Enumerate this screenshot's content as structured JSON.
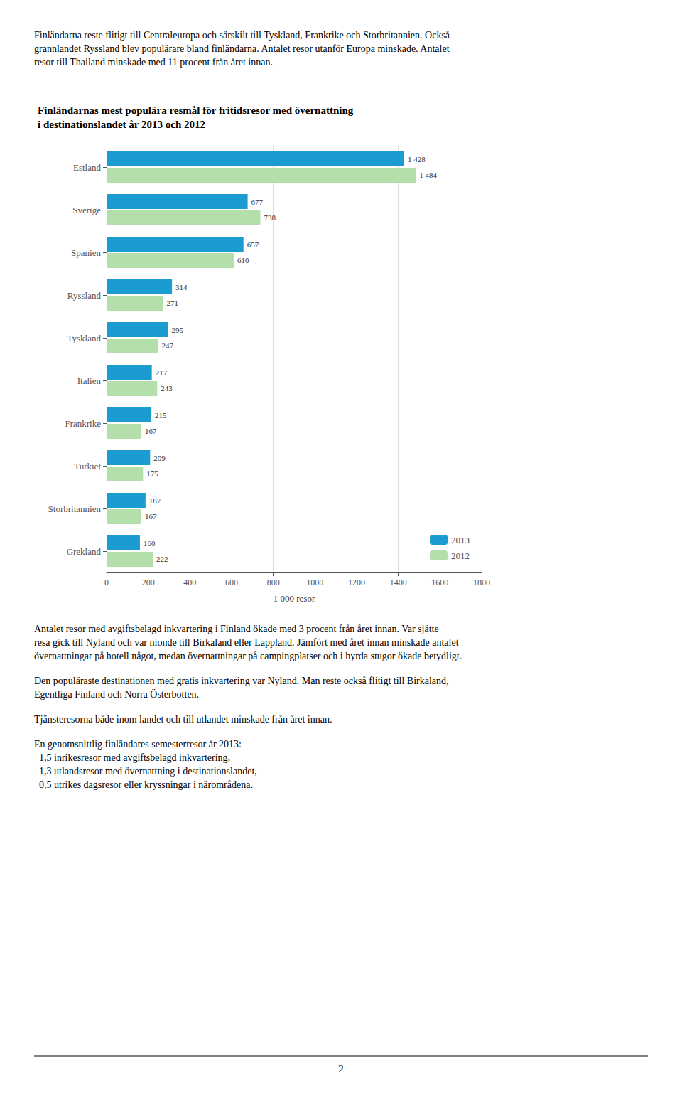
{
  "chart_data": {
    "type": "bar",
    "orientation": "horizontal",
    "title": "Finländarnas mest populära resmål för fritidsresor med övernattning\ni destinationslandet år 2013 och 2012",
    "annotations": [
      "Finländarna reste flitigt till Centraleuropa och särskilt till Tyskland, Frankrike och Storbritannien. Också\ngrannlandet Ryssland blev populärare bland finländarna. Antalet resor utanför Europa minskade. Antalet\nresor till Thailand minskade med 11 procent från året innan.",
      "Antalet resor med avgiftsbelagd inkvartering i Finland ökade med 3 procent från året innan. Var sjätte\nresa gick till Nyland och var nionde till Birkaland eller Lappland. Jämfört med året innan minskade antalet\növernattningar på hotell något, medan övernattningar på campingplatser och i hyrda stugor ökade betydligt.",
      "Den populäraste destinationen med gratis inkvartering var Nyland. Man reste också flitigt till Birkaland,\nEgentliga Finland och Norra Österbotten.",
      "Tjänsteresorna både inom landet och till utlandet minskade från året innan.",
      "En genomsnittlig finländares semesterresor år 2013:\n  1,5 inrikesresor med avgiftsbelagd inkvartering,\n  1,3 utlandsresor med övernattning i destinationslandet,\n  0,5 utrikes dagsresor eller kryssningar i närområdena.",
      "2"
    ],
    "xlabel": "1 000 resor",
    "categories": [
      "Estland",
      "Sverige",
      "Spanien",
      "Ryssland",
      "Tyskland",
      "Italien",
      "Frankrike",
      "Turkiet",
      "Storbritannien",
      "Grekland"
    ],
    "series": [
      {
        "name": "2013",
        "color": "#1B9CD0",
        "values": [
          1428,
          677,
          657,
          314,
          295,
          217,
          215,
          209,
          187,
          160
        ],
        "value_labels": [
          "1 428",
          "677",
          "657",
          "314",
          "295",
          "217",
          "215",
          "209",
          "187",
          "160"
        ]
      },
      {
        "name": "2012",
        "color": "#B2DFAA",
        "values": [
          1484,
          738,
          610,
          271,
          247,
          243,
          167,
          175,
          167,
          222
        ],
        "value_labels": [
          "1 484",
          "738",
          "610",
          "271",
          "247",
          "243",
          "167",
          "175",
          "167",
          "222"
        ]
      }
    ],
    "xlim": [
      0,
      1800
    ],
    "xticks": [
      0,
      200,
      400,
      600,
      800,
      1000,
      1200,
      1400,
      1600,
      1800
    ],
    "grid": true,
    "legend": "lower right",
    "data_labels": true
  }
}
